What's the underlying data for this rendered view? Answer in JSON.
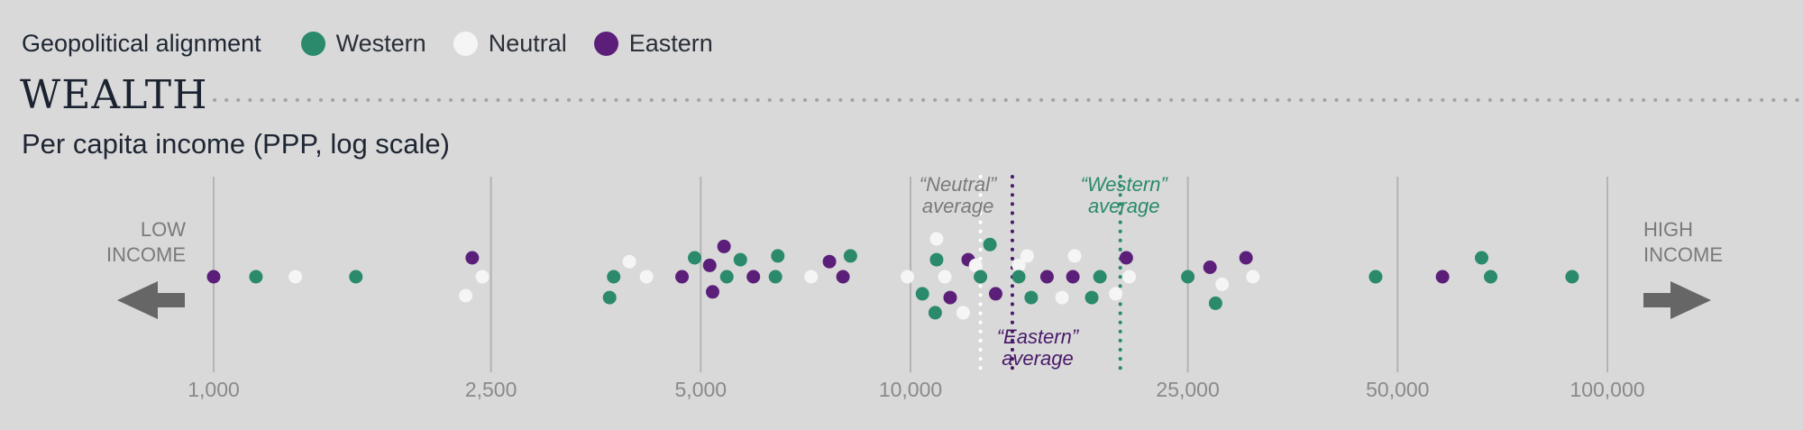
{
  "legend": {
    "title": "Geopolitical alignment",
    "items": [
      {
        "label": "Western",
        "color": "#2a8a6b"
      },
      {
        "label": "Neutral",
        "color": "#f5f5f5"
      },
      {
        "label": "Eastern",
        "color": "#5b1f7a"
      }
    ]
  },
  "section": {
    "title": "WEALTH",
    "subtitle": "Per capita income (PPP, log scale)"
  },
  "chart_data": {
    "type": "scatter",
    "scale": "log",
    "xlim": [
      1000,
      100000
    ],
    "ticks": [
      {
        "value": 1000,
        "label": "1,000"
      },
      {
        "value": 2500,
        "label": "2,500"
      },
      {
        "value": 5000,
        "label": "5,000"
      },
      {
        "value": 10000,
        "label": "10,000"
      },
      {
        "value": 25000,
        "label": "25,000"
      },
      {
        "value": 50000,
        "label": "50,000"
      },
      {
        "value": 100000,
        "label": "100,000"
      }
    ],
    "low_label": [
      "LOW",
      "INCOME"
    ],
    "high_label": [
      "HIGH",
      "INCOME"
    ],
    "averages": [
      {
        "group": "Neutral",
        "value": 12600,
        "label": [
          "“Neutral”",
          "average"
        ],
        "color": "#ffffff",
        "text_color": "#7a7a7a"
      },
      {
        "group": "Eastern",
        "value": 14000,
        "label": [
          "“Eastern”",
          "average"
        ],
        "color": "#4a1a6a",
        "text_color": "#4a1a6a"
      },
      {
        "group": "Western",
        "value": 20000,
        "label": [
          "“Western”",
          "average"
        ],
        "color": "#2a8a6b",
        "text_color": "#2a8a6b"
      }
    ],
    "colors": {
      "Western": "#2a8a6b",
      "Neutral": "#f5f5f5",
      "Eastern": "#5b1f7a"
    },
    "points": [
      {
        "group": "Eastern",
        "value": 1000,
        "row": 0
      },
      {
        "group": "Western",
        "value": 1150,
        "row": 0
      },
      {
        "group": "Neutral",
        "value": 1310,
        "row": 0
      },
      {
        "group": "Western",
        "value": 1600,
        "row": 0
      },
      {
        "group": "Eastern",
        "value": 2350,
        "row": -1
      },
      {
        "group": "Neutral",
        "value": 2300,
        "row": 1
      },
      {
        "group": "Neutral",
        "value": 2430,
        "row": 0
      },
      {
        "group": "Western",
        "value": 3700,
        "row": 1.1
      },
      {
        "group": "Western",
        "value": 3750,
        "row": 0
      },
      {
        "group": "Neutral",
        "value": 3950,
        "row": -0.8
      },
      {
        "group": "Neutral",
        "value": 4180,
        "row": 0
      },
      {
        "group": "Eastern",
        "value": 4700,
        "row": 0
      },
      {
        "group": "Western",
        "value": 4900,
        "row": -1
      },
      {
        "group": "Eastern",
        "value": 5150,
        "row": -0.6
      },
      {
        "group": "Eastern",
        "value": 5200,
        "row": 0.8
      },
      {
        "group": "Eastern",
        "value": 5400,
        "row": -1.6
      },
      {
        "group": "Western",
        "value": 5450,
        "row": 0
      },
      {
        "group": "Western",
        "value": 5700,
        "row": -0.9
      },
      {
        "group": "Eastern",
        "value": 5950,
        "row": 0
      },
      {
        "group": "Western",
        "value": 6400,
        "row": 0
      },
      {
        "group": "Western",
        "value": 6450,
        "row": -1.1
      },
      {
        "group": "Neutral",
        "value": 7200,
        "row": 0
      },
      {
        "group": "Eastern",
        "value": 7650,
        "row": -0.8
      },
      {
        "group": "Eastern",
        "value": 8000,
        "row": 0
      },
      {
        "group": "Western",
        "value": 8200,
        "row": -1.1
      },
      {
        "group": "Neutral",
        "value": 9900,
        "row": 0
      },
      {
        "group": "Western",
        "value": 10400,
        "row": 0.9
      },
      {
        "group": "Neutral",
        "value": 10900,
        "row": -2
      },
      {
        "group": "Western",
        "value": 10900,
        "row": -0.9
      },
      {
        "group": "Neutral",
        "value": 11200,
        "row": 0
      },
      {
        "group": "Western",
        "value": 10850,
        "row": 1.9
      },
      {
        "group": "Eastern",
        "value": 11400,
        "row": 1.1
      },
      {
        "group": "Neutral",
        "value": 11900,
        "row": 1.9
      },
      {
        "group": "Eastern",
        "value": 12100,
        "row": -0.9
      },
      {
        "group": "Neutral",
        "value": 12400,
        "row": -0.6
      },
      {
        "group": "Western",
        "value": 12600,
        "row": 0
      },
      {
        "group": "Western",
        "value": 13000,
        "row": -1.7
      },
      {
        "group": "Eastern",
        "value": 13250,
        "row": 0.9
      },
      {
        "group": "Neutral",
        "value": 14300,
        "row": -0.6
      },
      {
        "group": "Western",
        "value": 14300,
        "row": 0
      },
      {
        "group": "Neutral",
        "value": 14700,
        "row": -1.1
      },
      {
        "group": "Western",
        "value": 14900,
        "row": 1.1
      },
      {
        "group": "Eastern",
        "value": 15700,
        "row": 0
      },
      {
        "group": "Neutral",
        "value": 16500,
        "row": 1.1
      },
      {
        "group": "Eastern",
        "value": 17100,
        "row": 0
      },
      {
        "group": "Neutral",
        "value": 17200,
        "row": -1.1
      },
      {
        "group": "Western",
        "value": 18200,
        "row": 1.1
      },
      {
        "group": "Western",
        "value": 18700,
        "row": 0
      },
      {
        "group": "Neutral",
        "value": 19700,
        "row": 0.9
      },
      {
        "group": "Eastern",
        "value": 20400,
        "row": -1
      },
      {
        "group": "Neutral",
        "value": 20600,
        "row": 0
      },
      {
        "group": "Western",
        "value": 25000,
        "row": 0
      },
      {
        "group": "Eastern",
        "value": 26900,
        "row": -0.5
      },
      {
        "group": "Western",
        "value": 27400,
        "row": 1.4
      },
      {
        "group": "Neutral",
        "value": 28000,
        "row": 0.4
      },
      {
        "group": "Eastern",
        "value": 30300,
        "row": -1
      },
      {
        "group": "Neutral",
        "value": 31000,
        "row": 0
      },
      {
        "group": "Western",
        "value": 46500,
        "row": 0
      },
      {
        "group": "Eastern",
        "value": 58000,
        "row": 0
      },
      {
        "group": "Western",
        "value": 66000,
        "row": -1
      },
      {
        "group": "Western",
        "value": 68000,
        "row": 0
      },
      {
        "group": "Western",
        "value": 89000,
        "row": 0
      }
    ]
  }
}
